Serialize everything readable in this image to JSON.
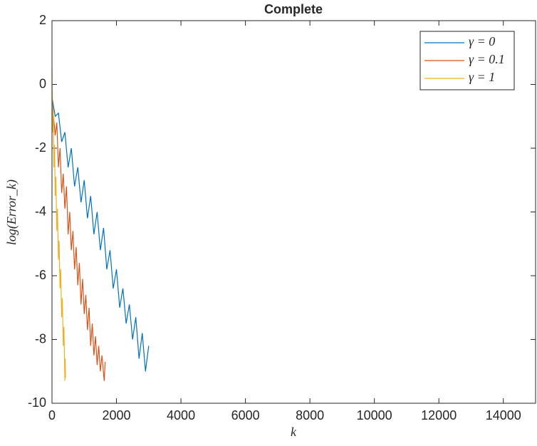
{
  "chart_data": {
    "type": "line",
    "title": "Complete",
    "x_label": "k",
    "y_label": "log(Error_k)",
    "xlim": [
      0,
      15000
    ],
    "xticks": [
      0,
      2000,
      4000,
      6000,
      8000,
      10000,
      12000,
      14000
    ],
    "ylim": [
      -10,
      2
    ],
    "yticks": [
      -10,
      -8,
      -6,
      -4,
      -2,
      0,
      2
    ],
    "legend": "upper-right",
    "series": [
      {
        "name": "γ = 0",
        "color": "#0072bd",
        "x": [
          0,
          100,
          200,
          300,
          400,
          500,
          600,
          700,
          800,
          900,
          1000,
          1100,
          1200,
          1300,
          1400,
          1500,
          1600,
          1700,
          1800,
          1900,
          2000,
          2100,
          2200,
          2300,
          2400,
          2500,
          2600,
          2700,
          2800,
          2900,
          3000
        ],
        "values": [
          -0.4,
          -1.0,
          -0.9,
          -1.8,
          -1.5,
          -2.6,
          -2.0,
          -3.2,
          -2.6,
          -3.7,
          -3.0,
          -4.2,
          -3.5,
          -4.7,
          -4.0,
          -5.2,
          -4.5,
          -5.8,
          -5.2,
          -6.4,
          -5.8,
          -7.0,
          -6.4,
          -7.5,
          -6.9,
          -8.0,
          -7.3,
          -8.6,
          -7.8,
          -9.0,
          -8.2
        ]
      },
      {
        "name": "γ = 0.1",
        "color": "#d95319",
        "x": [
          0,
          100,
          150,
          200,
          250,
          300,
          350,
          400,
          450,
          500,
          550,
          600,
          650,
          700,
          750,
          800,
          850,
          900,
          950,
          1000,
          1050,
          1100,
          1150,
          1200,
          1250,
          1300,
          1350,
          1400,
          1450,
          1500,
          1550,
          1620,
          1650
        ],
        "values": [
          -0.5,
          -1.6,
          -1.2,
          -2.6,
          -2.0,
          -3.4,
          -2.8,
          -3.9,
          -3.2,
          -4.7,
          -4.0,
          -5.2,
          -4.6,
          -5.8,
          -5.1,
          -6.3,
          -5.6,
          -6.9,
          -6.1,
          -7.2,
          -6.6,
          -7.7,
          -7.0,
          -8.2,
          -7.5,
          -8.5,
          -7.9,
          -8.8,
          -8.2,
          -9.0,
          -8.5,
          -9.3,
          -8.7
        ]
      },
      {
        "name": "γ = 1",
        "color": "#edb120",
        "x": [
          0,
          20,
          40,
          60,
          80,
          100,
          120,
          150,
          170,
          200,
          220,
          250,
          270,
          300,
          320,
          350,
          370,
          400,
          410,
          420
        ],
        "values": [
          0.5,
          -1.5,
          -0.8,
          -2.6,
          -1.9,
          -3.5,
          -2.9,
          -4.6,
          -3.9,
          -5.5,
          -4.9,
          -6.4,
          -5.8,
          -7.3,
          -6.7,
          -8.2,
          -7.6,
          -9.3,
          -8.6,
          -9.2
        ]
      }
    ]
  }
}
